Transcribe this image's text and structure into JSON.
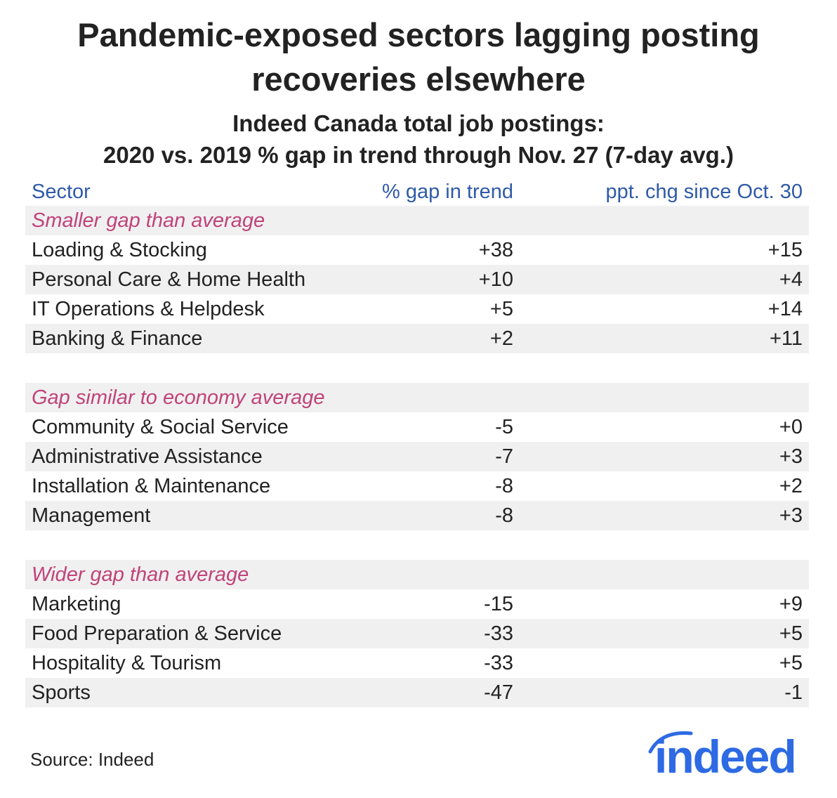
{
  "chart_data": {
    "type": "table",
    "title": "Pandemic-exposed sectors lagging posting recoveries elsewhere",
    "subtitle_line1": "Indeed Canada total job postings:",
    "subtitle_line2": "2020 vs. 2019 % gap in trend through Nov. 27 (7-day avg.)",
    "columns": [
      "Sector",
      "% gap in trend",
      "ppt. chg since Oct. 30"
    ],
    "groups": [
      {
        "label": "Smaller gap than average",
        "rows": [
          {
            "sector": "Loading & Stocking",
            "gap": "+38",
            "chg": "+15"
          },
          {
            "sector": "Personal Care & Home Health",
            "gap": "+10",
            "chg": "+4"
          },
          {
            "sector": "IT Operations & Helpdesk",
            "gap": "+5",
            "chg": "+14"
          },
          {
            "sector": "Banking & Finance",
            "gap": "+2",
            "chg": "+11"
          }
        ]
      },
      {
        "label": "Gap similar to economy average",
        "rows": [
          {
            "sector": "Community & Social Service",
            "gap": "-5",
            "chg": "+0"
          },
          {
            "sector": "Administrative Assistance",
            "gap": "-7",
            "chg": "+3"
          },
          {
            "sector": "Installation & Maintenance",
            "gap": "-8",
            "chg": "+2"
          },
          {
            "sector": "Management",
            "gap": "-8",
            "chg": "+3"
          }
        ]
      },
      {
        "label": "Wider gap than average",
        "rows": [
          {
            "sector": "Marketing",
            "gap": "-15",
            "chg": "+9"
          },
          {
            "sector": "Food Preparation & Service",
            "gap": "-33",
            "chg": "+5"
          },
          {
            "sector": "Hospitality & Tourism",
            "gap": "-33",
            "chg": "+5"
          },
          {
            "sector": "Sports",
            "gap": "-47",
            "chg": "-1"
          }
        ]
      }
    ],
    "source": "Source: Indeed",
    "colors": {
      "header": "#2f5aa8",
      "category": "#c0437a",
      "band": "#f0f0f0",
      "logo": "#2d6ae3"
    }
  },
  "logo": "indeed"
}
